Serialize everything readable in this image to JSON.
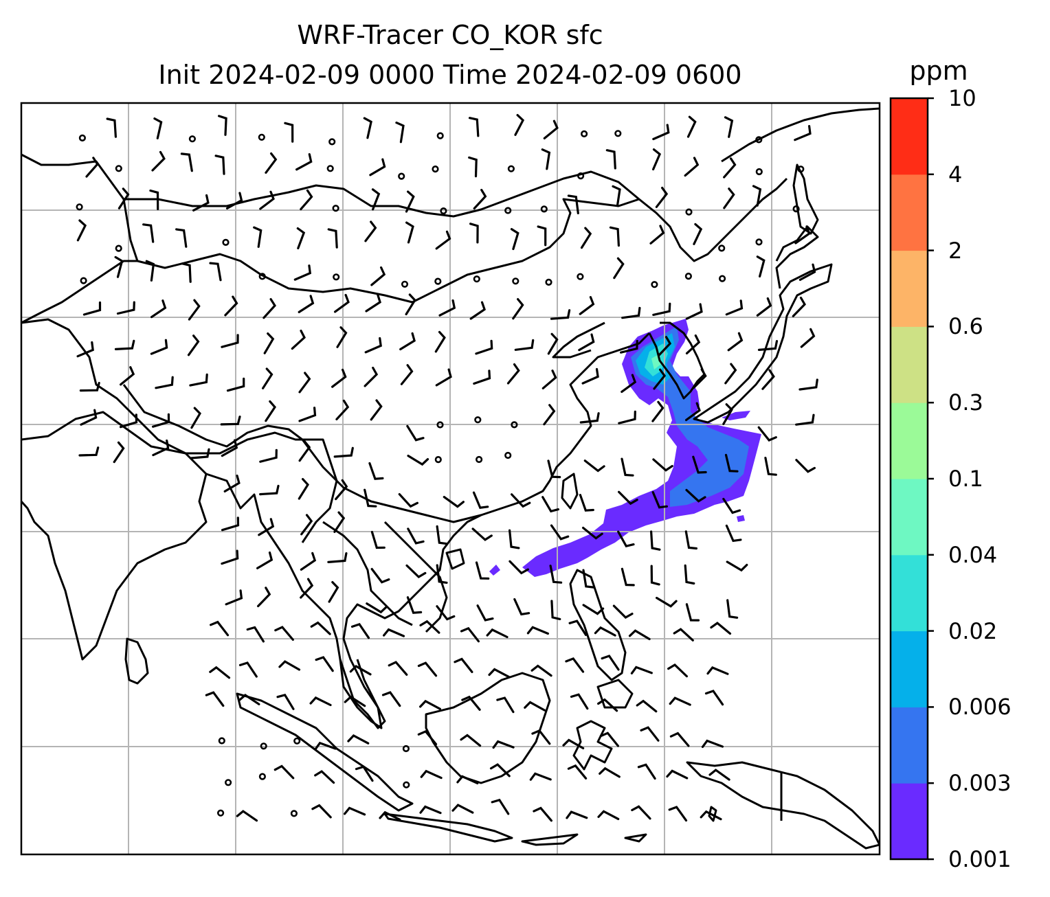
{
  "title": {
    "line1": "WRF-Tracer CO_KOR sfc",
    "line2": "Init 2024-02-09 0000 Time 2024-02-09 0600"
  },
  "colorbar": {
    "unit": "ppm",
    "levels": [
      "0.001",
      "0.003",
      "0.006",
      "0.02",
      "0.04",
      "0.1",
      "0.3",
      "0.6",
      "2",
      "4",
      "10"
    ],
    "colors": [
      "#6a2bff",
      "#3575f0",
      "#05b0ea",
      "#33e0d8",
      "#6ef8c2",
      "#9bfa98",
      "#cde185",
      "#fdb467",
      "#ff7341",
      "#ff2d16"
    ]
  },
  "map": {
    "gridlines": true,
    "barb_color": "#000000",
    "coast_color": "#000000",
    "grid_color": "#b4b4b4"
  }
}
